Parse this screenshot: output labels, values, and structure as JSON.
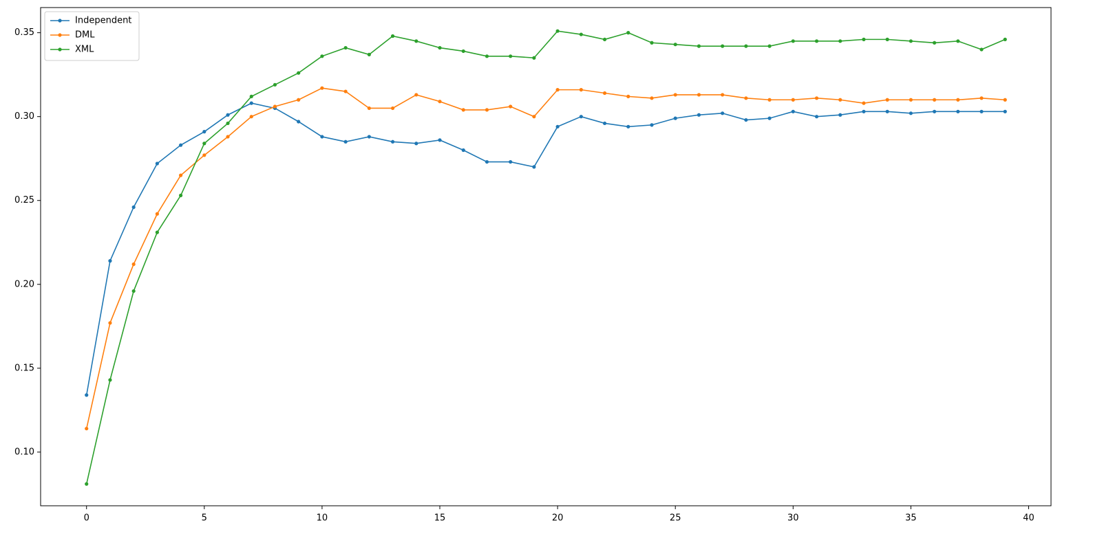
{
  "chart_data": {
    "type": "line",
    "x": [
      0,
      1,
      2,
      3,
      4,
      5,
      6,
      7,
      8,
      9,
      10,
      11,
      12,
      13,
      14,
      15,
      16,
      17,
      18,
      19,
      20,
      21,
      22,
      23,
      24,
      25,
      26,
      27,
      28,
      29,
      30,
      31,
      32,
      33,
      34,
      35,
      36,
      37,
      38,
      39
    ],
    "series": [
      {
        "name": "Independent",
        "color": "#1f77b4",
        "values": [
          0.134,
          0.214,
          0.246,
          0.272,
          0.283,
          0.291,
          0.301,
          0.308,
          0.305,
          0.297,
          0.288,
          0.285,
          0.288,
          0.285,
          0.284,
          0.286,
          0.28,
          0.273,
          0.273,
          0.27,
          0.294,
          0.3,
          0.296,
          0.294,
          0.295,
          0.299,
          0.301,
          0.302,
          0.298,
          0.299,
          0.303,
          0.3,
          0.301,
          0.303,
          0.303,
          0.302,
          0.303,
          0.303,
          0.303,
          0.303
        ]
      },
      {
        "name": "DML",
        "color": "#ff7f0e",
        "values": [
          0.114,
          0.177,
          0.212,
          0.242,
          0.265,
          0.277,
          0.288,
          0.3,
          0.306,
          0.31,
          0.317,
          0.315,
          0.305,
          0.305,
          0.313,
          0.309,
          0.304,
          0.304,
          0.306,
          0.3,
          0.316,
          0.316,
          0.314,
          0.312,
          0.311,
          0.313,
          0.313,
          0.313,
          0.311,
          0.31,
          0.31,
          0.311,
          0.31,
          0.308,
          0.31,
          0.31,
          0.31,
          0.31,
          0.311,
          0.31
        ]
      },
      {
        "name": "XML",
        "color": "#2ca02c",
        "values": [
          0.081,
          0.143,
          0.196,
          0.231,
          0.253,
          0.284,
          0.296,
          0.312,
          0.319,
          0.326,
          0.336,
          0.341,
          0.337,
          0.348,
          0.345,
          0.341,
          0.339,
          0.336,
          0.336,
          0.335,
          0.351,
          0.349,
          0.346,
          0.35,
          0.344,
          0.343,
          0.342,
          0.342,
          0.342,
          0.342,
          0.345,
          0.345,
          0.345,
          0.346,
          0.346,
          0.345,
          0.344,
          0.345,
          0.34,
          0.346
        ]
      }
    ],
    "xlim": [
      -1.95,
      40.95
    ],
    "xticks": [
      0,
      5,
      10,
      15,
      20,
      25,
      30,
      35,
      40
    ],
    "ylim": [
      0.068,
      0.365
    ],
    "yticks": [
      {
        "value": 0.1,
        "label": "0.10"
      },
      0.15,
      {
        "value": 0.2,
        "label": "0.20"
      },
      0.25,
      {
        "value": 0.3,
        "label": "0.30"
      },
      0.35
    ],
    "legend": "upper-left",
    "grid": false
  }
}
